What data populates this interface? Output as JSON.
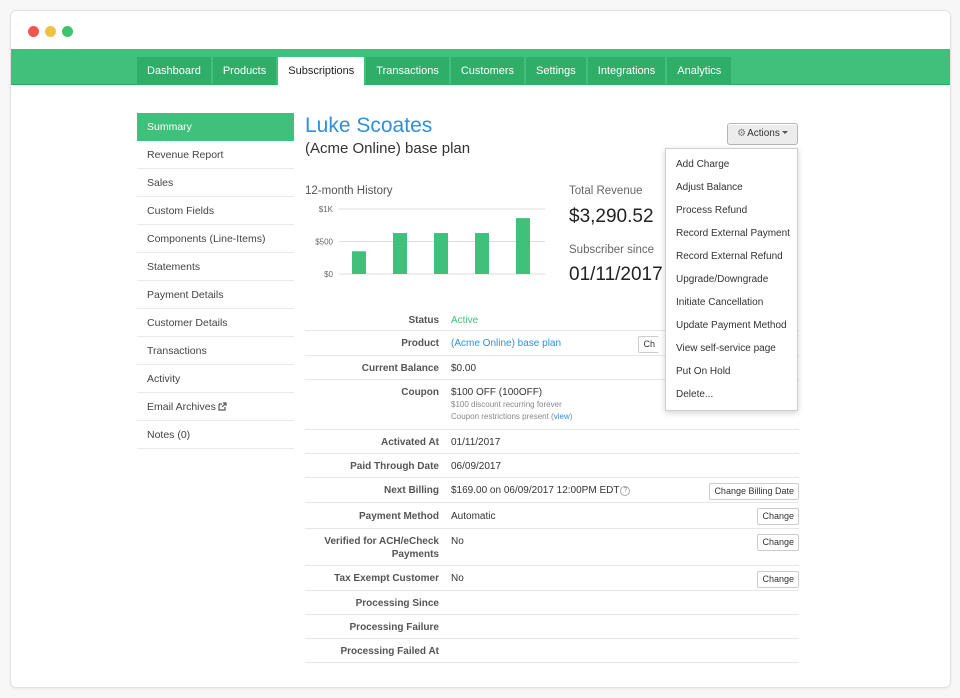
{
  "nav": {
    "tabs": [
      {
        "label": "Dashboard"
      },
      {
        "label": "Products"
      },
      {
        "label": "Subscriptions"
      },
      {
        "label": "Transactions"
      },
      {
        "label": "Customers"
      },
      {
        "label": "Settings"
      },
      {
        "label": "Integrations"
      },
      {
        "label": "Analytics"
      }
    ],
    "active_tab": "Subscriptions"
  },
  "sidebar": {
    "items": [
      {
        "label": "Summary"
      },
      {
        "label": "Revenue Report"
      },
      {
        "label": "Sales"
      },
      {
        "label": "Custom Fields"
      },
      {
        "label": "Components (Line-Items)"
      },
      {
        "label": "Statements"
      },
      {
        "label": "Payment Details"
      },
      {
        "label": "Customer Details"
      },
      {
        "label": "Transactions"
      },
      {
        "label": "Activity"
      },
      {
        "label": "Email Archives",
        "icon": "external-link-icon"
      },
      {
        "label": "Notes (0)"
      }
    ],
    "active_item": "Summary"
  },
  "header": {
    "customer_name": "Luke Scoates",
    "plan_name": "(Acme Online) base plan"
  },
  "history": {
    "title": "12-month History"
  },
  "chart_data": {
    "type": "bar",
    "title": "12-month History",
    "y_ticks": [
      "$1K",
      "$500",
      "$0"
    ],
    "ylim": [
      0,
      1000
    ],
    "values": [
      350,
      630,
      630,
      630,
      860
    ],
    "color": "#3fc17b",
    "grid": true
  },
  "revenue": {
    "total_label": "Total Revenue",
    "total_value": "$3,290.52",
    "since_label": "Subscriber since",
    "since_value": "01/11/2017"
  },
  "details": {
    "status": {
      "label": "Status",
      "value": "Active"
    },
    "product": {
      "label": "Product",
      "value": "(Acme Online) base plan",
      "button_partial": "Ch"
    },
    "current_balance": {
      "label": "Current Balance",
      "value": "$0.00"
    },
    "coupon": {
      "label": "Coupon",
      "value": "$100 OFF (100OFF)",
      "note1": "$100 discount recurring forever",
      "note2_prefix": "Coupon restrictions present (",
      "note2_link": "view",
      "note2_suffix": ")"
    },
    "activated_at": {
      "label": "Activated At",
      "value": "01/11/2017"
    },
    "paid_through": {
      "label": "Paid Through Date",
      "value": "06/09/2017"
    },
    "next_billing": {
      "label": "Next Billing",
      "value": "$169.00 on 06/09/2017 12:00PM EDT",
      "button": "Change Billing Date"
    },
    "payment_method": {
      "label": "Payment Method",
      "value": "Automatic",
      "button": "Change"
    },
    "verified_ach": {
      "label_line1": "Verified for ACH/eCheck",
      "label_line2": "Payments",
      "value": "No",
      "button": "Change"
    },
    "tax_exempt": {
      "label": "Tax Exempt Customer",
      "value": "No",
      "button": "Change"
    },
    "processing_since": {
      "label": "Processing Since",
      "value": ""
    },
    "processing_failure": {
      "label": "Processing Failure",
      "value": ""
    },
    "processing_failed_at": {
      "label": "Processing Failed At",
      "value": ""
    }
  },
  "actions": {
    "button_label": "Actions",
    "icon": "gear-icon",
    "menu": [
      {
        "label": "Add Charge"
      },
      {
        "label": "Adjust Balance"
      },
      {
        "label": "Process Refund"
      },
      {
        "label": "Record External Payment"
      },
      {
        "label": "Record External Refund"
      },
      {
        "label": "Upgrade/Downgrade"
      },
      {
        "label": "Initiate Cancellation"
      },
      {
        "label": "Update Payment Method"
      },
      {
        "label": "View self-service page"
      },
      {
        "label": "Put On Hold"
      },
      {
        "label": "Delete..."
      }
    ]
  },
  "colors": {
    "brand_green": "#3fc17b",
    "link_blue": "#2f8fdc"
  }
}
